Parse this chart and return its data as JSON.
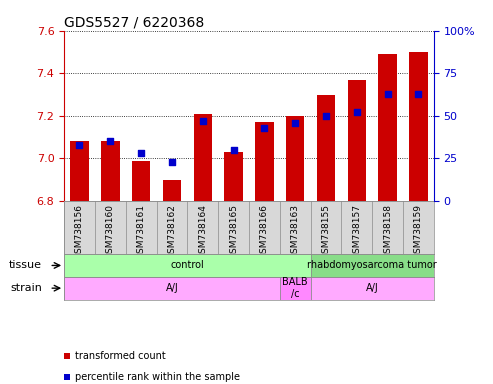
{
  "title": "GDS5527 / 6220368",
  "samples": [
    "GSM738156",
    "GSM738160",
    "GSM738161",
    "GSM738162",
    "GSM738164",
    "GSM738165",
    "GSM738166",
    "GSM738163",
    "GSM738155",
    "GSM738157",
    "GSM738158",
    "GSM738159"
  ],
  "transformed_count": [
    7.08,
    7.08,
    6.99,
    6.9,
    7.21,
    7.03,
    7.17,
    7.2,
    7.3,
    7.37,
    7.49,
    7.5
  ],
  "percentile_rank": [
    33,
    35,
    28,
    23,
    47,
    30,
    43,
    46,
    50,
    52,
    63,
    63
  ],
  "ylim_left": [
    6.8,
    7.6
  ],
  "ylim_right": [
    0,
    100
  ],
  "yticks_left": [
    6.8,
    7.0,
    7.2,
    7.4,
    7.6
  ],
  "yticks_right": [
    0,
    25,
    50,
    75,
    100
  ],
  "bar_color": "#cc0000",
  "dot_color": "#0000cc",
  "bar_bottom": 6.8,
  "tissue_groups": [
    {
      "label": "control",
      "start": 0,
      "end": 8,
      "color": "#aaffaa"
    },
    {
      "label": "rhabdomyosarcoma tumor",
      "start": 8,
      "end": 12,
      "color": "#88dd88"
    }
  ],
  "strain_groups": [
    {
      "label": "A/J",
      "start": 0,
      "end": 7,
      "color": "#ffaaff"
    },
    {
      "label": "BALB\n/c",
      "start": 7,
      "end": 8,
      "color": "#ff88ff"
    },
    {
      "label": "A/J",
      "start": 8,
      "end": 12,
      "color": "#ffaaff"
    }
  ],
  "tissue_label": "tissue",
  "strain_label": "strain",
  "legend_items": [
    {
      "color": "#cc0000",
      "label": "transformed count"
    },
    {
      "color": "#0000cc",
      "label": "percentile rank within the sample"
    }
  ],
  "tick_color_left": "#cc0000",
  "tick_color_right": "#0000cc",
  "bar_color_right": "#0000aa",
  "bg_color": "#d8d8d8",
  "plot_bg": "#ffffff",
  "bar_width": 0.6
}
